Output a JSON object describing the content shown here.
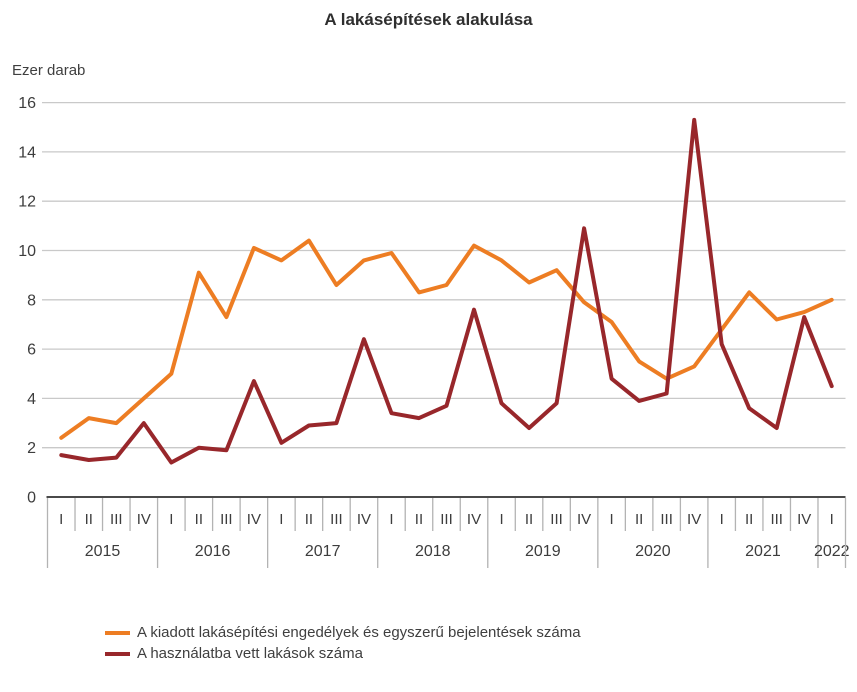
{
  "title": "A lakásépítések alakulása",
  "y_axis_unit": "Ezer darab",
  "chart_data": {
    "type": "line",
    "title": "A lakásépítések alakulása",
    "ylabel": "Ezer darab",
    "ylim": [
      0,
      16
    ],
    "ytick_step": 2,
    "grid": true,
    "legend_position": "bottom-left",
    "years": [
      {
        "label": "2015",
        "quarters": [
          "I",
          "II",
          "III",
          "IV"
        ]
      },
      {
        "label": "2016",
        "quarters": [
          "I",
          "II",
          "III",
          "IV"
        ]
      },
      {
        "label": "2017",
        "quarters": [
          "I",
          "II",
          "III",
          "IV"
        ]
      },
      {
        "label": "2018",
        "quarters": [
          "I",
          "II",
          "III",
          "IV"
        ]
      },
      {
        "label": "2019",
        "quarters": [
          "I",
          "II",
          "III",
          "IV"
        ]
      },
      {
        "label": "2020",
        "quarters": [
          "I",
          "II",
          "III",
          "IV"
        ]
      },
      {
        "label": "2021",
        "quarters": [
          "I",
          "II",
          "III",
          "IV"
        ]
      },
      {
        "label": "2022",
        "quarters": [
          "I"
        ]
      }
    ],
    "categories": [
      "2015 I",
      "2015 II",
      "2015 III",
      "2015 IV",
      "2016 I",
      "2016 II",
      "2016 III",
      "2016 IV",
      "2017 I",
      "2017 II",
      "2017 III",
      "2017 IV",
      "2018 I",
      "2018 II",
      "2018 III",
      "2018 IV",
      "2019 I",
      "2019 II",
      "2019 III",
      "2019 IV",
      "2020 I",
      "2020 II",
      "2020 III",
      "2020 IV",
      "2021 I",
      "2021 II",
      "2021 III",
      "2021 IV",
      "2022 I"
    ],
    "series": [
      {
        "name": "A kiadott lakásépítési engedélyek és egyszerű bejelentések száma",
        "color": "#ED7D23",
        "values": [
          2.4,
          3.2,
          3.0,
          4.0,
          5.0,
          9.1,
          7.3,
          10.1,
          9.6,
          10.4,
          8.6,
          9.6,
          9.9,
          8.3,
          8.6,
          10.2,
          9.6,
          8.7,
          9.2,
          7.9,
          7.1,
          5.5,
          4.8,
          5.3,
          6.8,
          8.3,
          7.2,
          7.5,
          8.0
        ]
      },
      {
        "name": "A használatba vett lakások száma",
        "color": "#98272B",
        "values": [
          1.7,
          1.5,
          1.6,
          3.0,
          1.4,
          2.0,
          1.9,
          4.7,
          2.2,
          2.9,
          3.0,
          6.4,
          3.4,
          3.2,
          3.7,
          7.6,
          3.8,
          2.8,
          3.8,
          10.9,
          4.8,
          3.9,
          4.2,
          15.3,
          6.2,
          3.6,
          2.8,
          7.3,
          4.5
        ]
      }
    ],
    "colors": {
      "gridline": "#c9c9c9",
      "axis": "#4a4a4a",
      "tick": "#b3b3b3",
      "text": "#3d3d3d"
    }
  }
}
